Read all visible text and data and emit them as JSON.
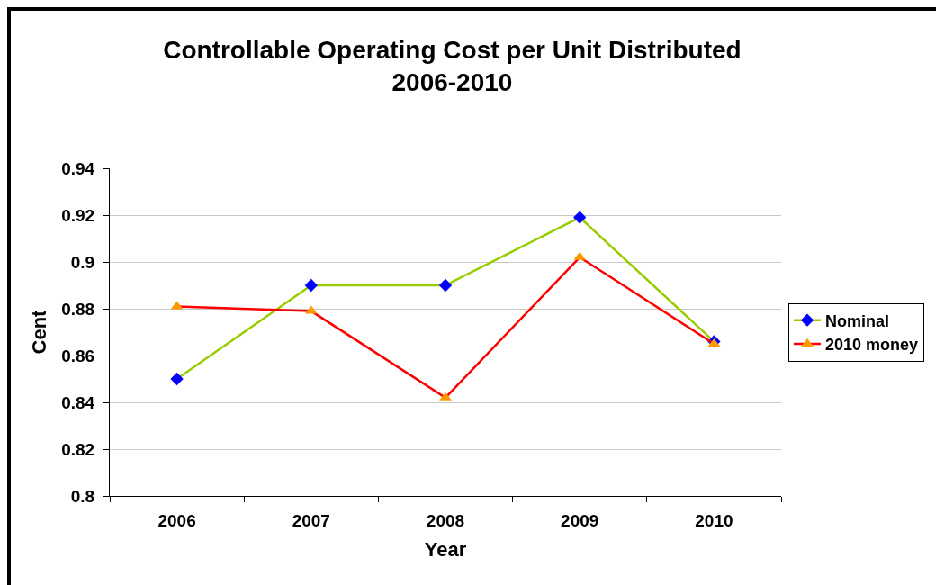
{
  "chart_data": {
    "type": "line",
    "title": "Controllable Operating Cost per Unit Distributed\n2006-2010",
    "xlabel": "Year",
    "ylabel": "Cent",
    "categories": [
      "2006",
      "2007",
      "2008",
      "2009",
      "2010"
    ],
    "series": [
      {
        "name": "Nominal",
        "color": "#99cc00",
        "colors": [
          "#0000ff",
          "#0000ff",
          "#0000ff",
          "#0000ff",
          "#0000ff"
        ],
        "marker": "diamond",
        "values": [
          0.85,
          0.89,
          0.89,
          0.919,
          0.866
        ]
      },
      {
        "name": "2010 money",
        "color": "#ff0000",
        "colors": [
          "#ff9900",
          "#ff9900",
          "#ff9900",
          "#ff9900",
          "#ff9900"
        ],
        "marker": "triangle",
        "values": [
          0.881,
          0.879,
          0.842,
          0.902,
          0.865
        ]
      }
    ],
    "ylim": [
      0.8,
      0.94
    ],
    "yticks": [
      0.8,
      0.82,
      0.84,
      0.86,
      0.88,
      0.9,
      0.92,
      0.94
    ],
    "grid": "y",
    "legend": "right",
    "line_style": "solid"
  }
}
